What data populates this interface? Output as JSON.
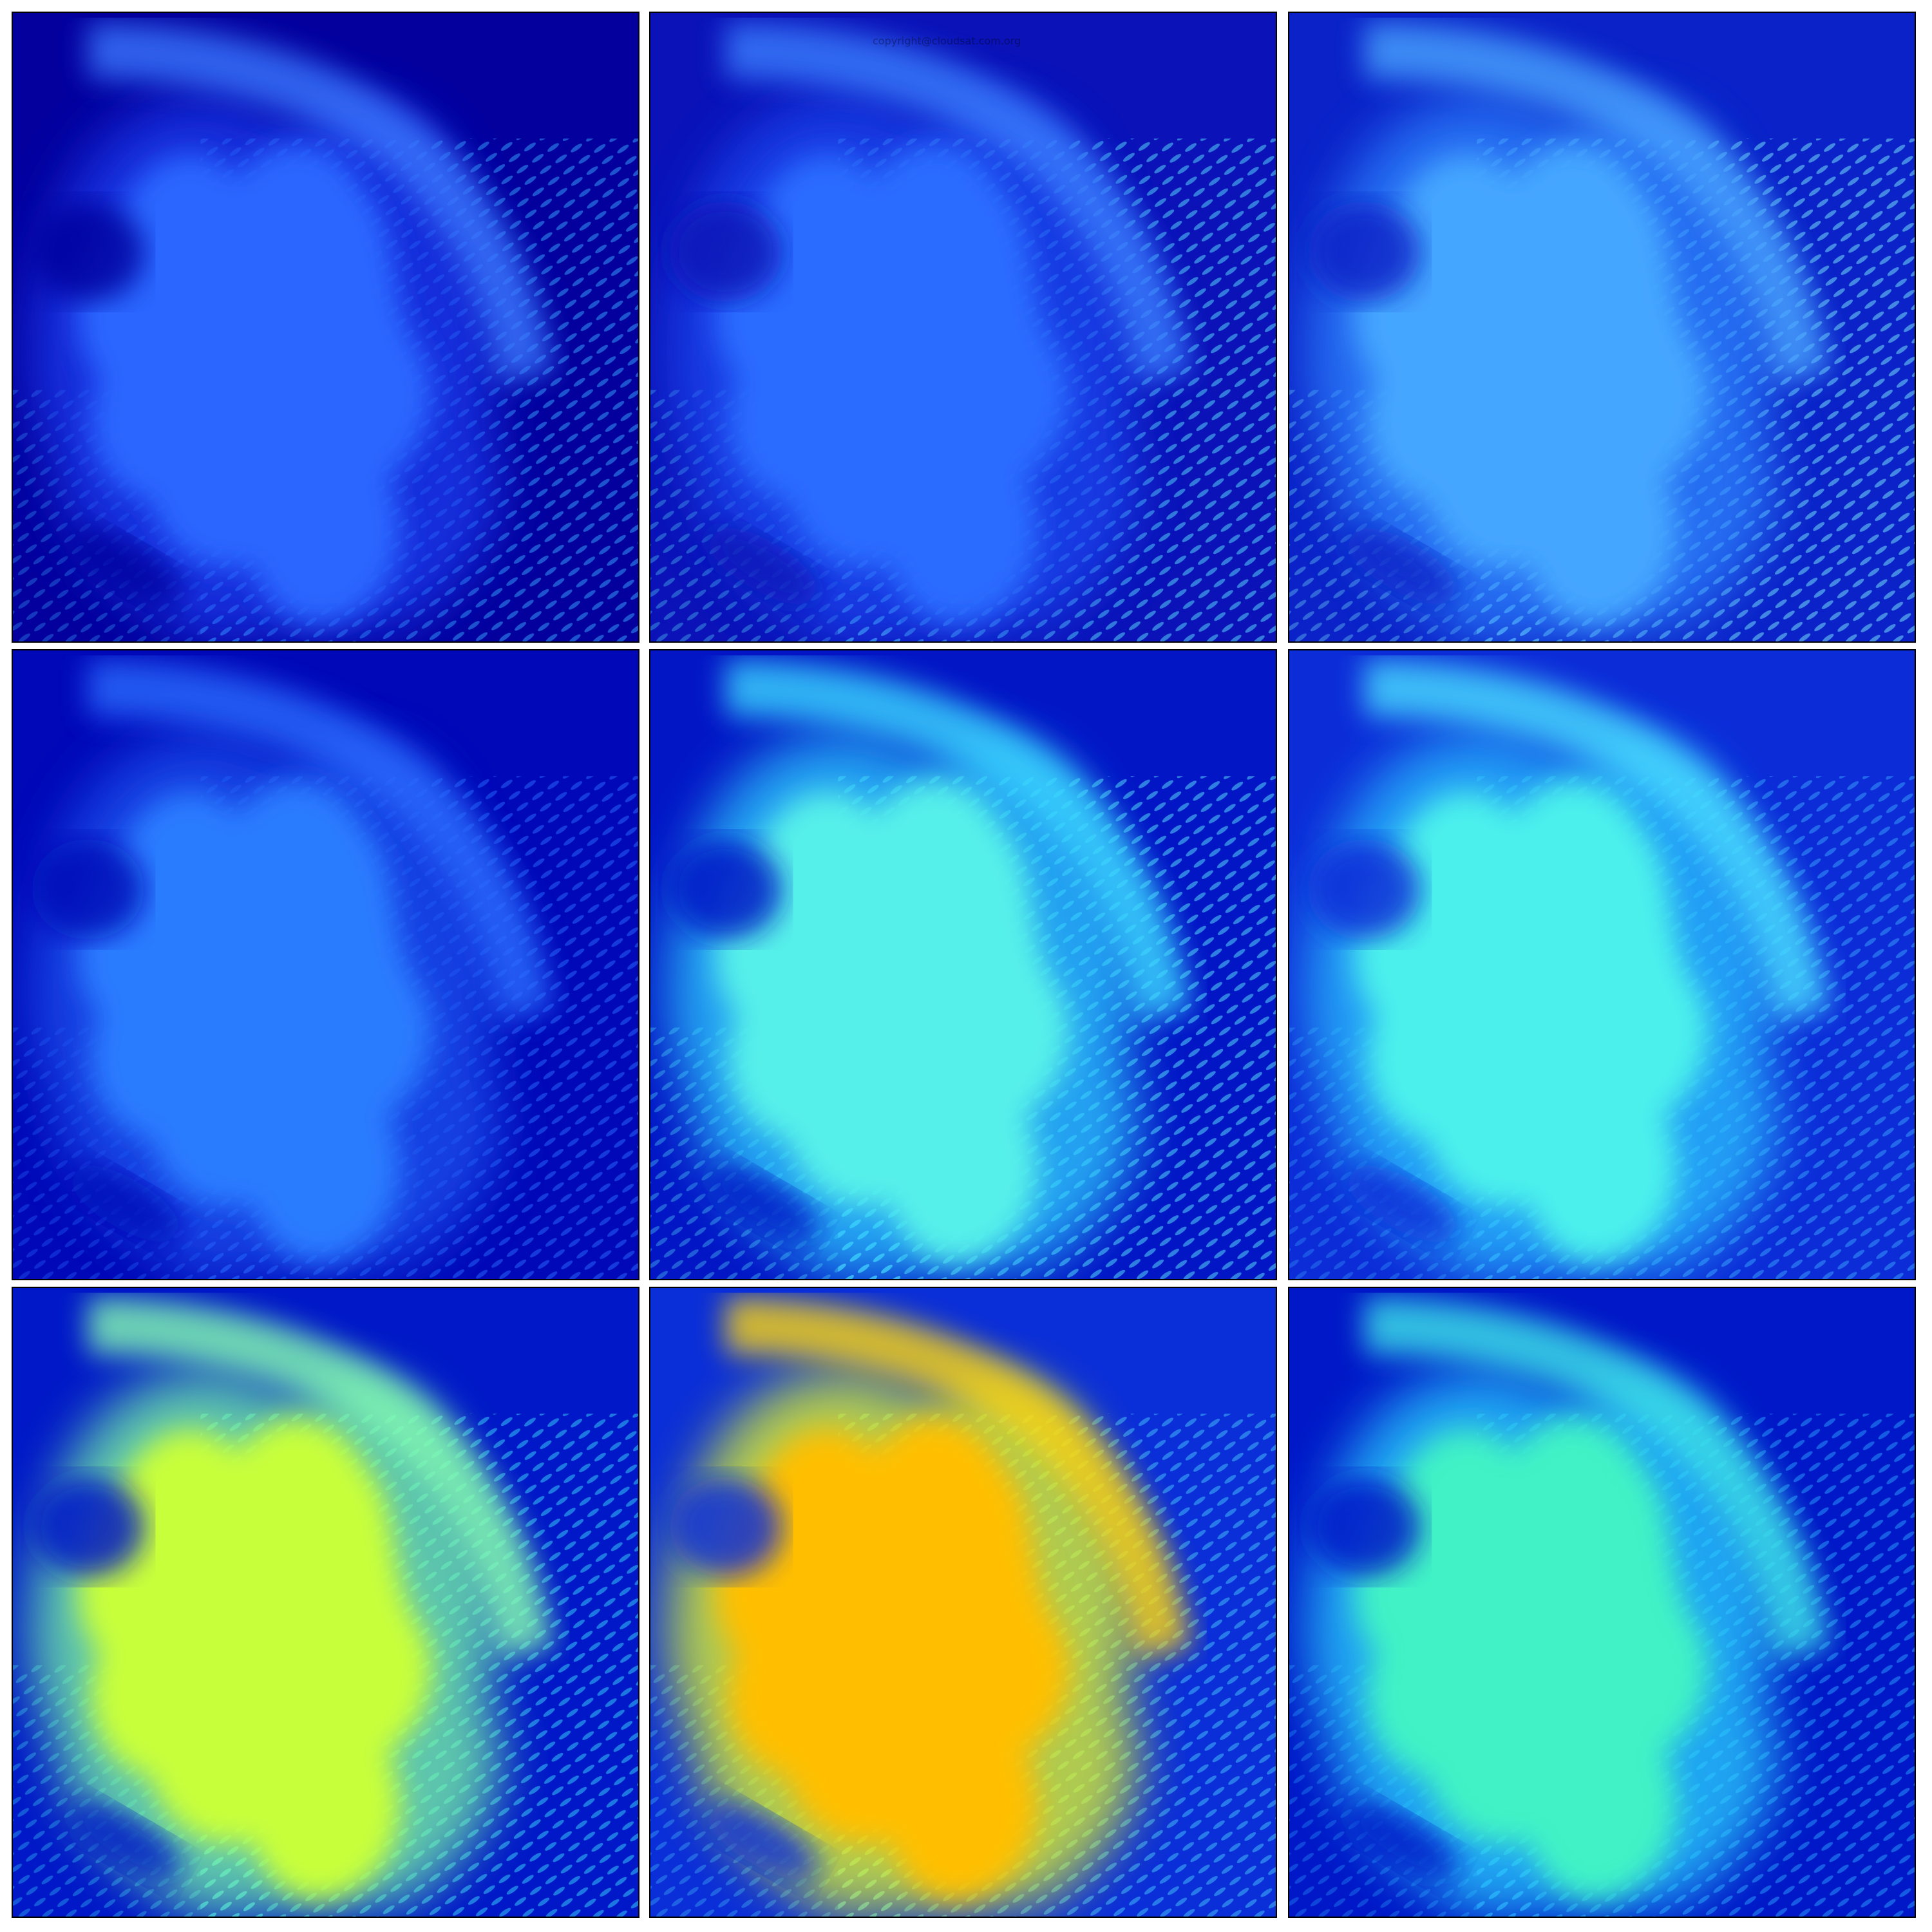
{
  "figure": {
    "layout": {
      "rows": 3,
      "cols": 3
    },
    "colormap": "jet",
    "panels": [
      {
        "row": 0,
        "col": 0,
        "background": "#03009e",
        "cloud": "#2b66ff",
        "halo": "#1a3ef0",
        "arc": "#3a78ff",
        "texture": "#39a8ff"
      },
      {
        "row": 0,
        "col": 1,
        "background": "#0a12b8",
        "cloud": "#2b6cff",
        "halo": "#1c48f2",
        "arc": "#3b7fff",
        "texture": "#5be3ff"
      },
      {
        "row": 0,
        "col": 2,
        "background": "#0a22c8",
        "cloud": "#45a6ff",
        "halo": "#2e86ff",
        "arc": "#4aa4ff",
        "texture": "#7df0ff"
      },
      {
        "row": 1,
        "col": 0,
        "background": "#0008b8",
        "cloud": "#2a7cff",
        "halo": "#1b52f0",
        "arc": "#2a6cff",
        "texture": "#2a6cff"
      },
      {
        "row": 1,
        "col": 1,
        "background": "#0316c6",
        "cloud": "#56f0ea",
        "halo": "#2fd0ff",
        "arc": "#3bd8ff",
        "texture": "#5aeaff"
      },
      {
        "row": 1,
        "col": 2,
        "background": "#0c2cd8",
        "cloud": "#4cf0ec",
        "halo": "#2cc4ff",
        "arc": "#4ae0ff",
        "texture": "#3aa6ff"
      },
      {
        "row": 2,
        "col": 0,
        "background": "#0018c8",
        "cloud": "#c8ff3a",
        "halo": "#7cffa4",
        "arc": "#86ffb0",
        "texture": "#3ad8ff"
      },
      {
        "row": 2,
        "col": 1,
        "background": "#0a2ed8",
        "cloud": "#ffbf00",
        "halo": "#e7ff24",
        "arc": "#ffd80a",
        "texture": "#46c8ff"
      },
      {
        "row": 2,
        "col": 2,
        "background": "#0018c8",
        "cloud": "#3ff2c6",
        "halo": "#2ad4ff",
        "arc": "#3ee6e8",
        "texture": "#2ea0ff"
      }
    ],
    "watermark": "copyright@cloudsat.com.org"
  }
}
